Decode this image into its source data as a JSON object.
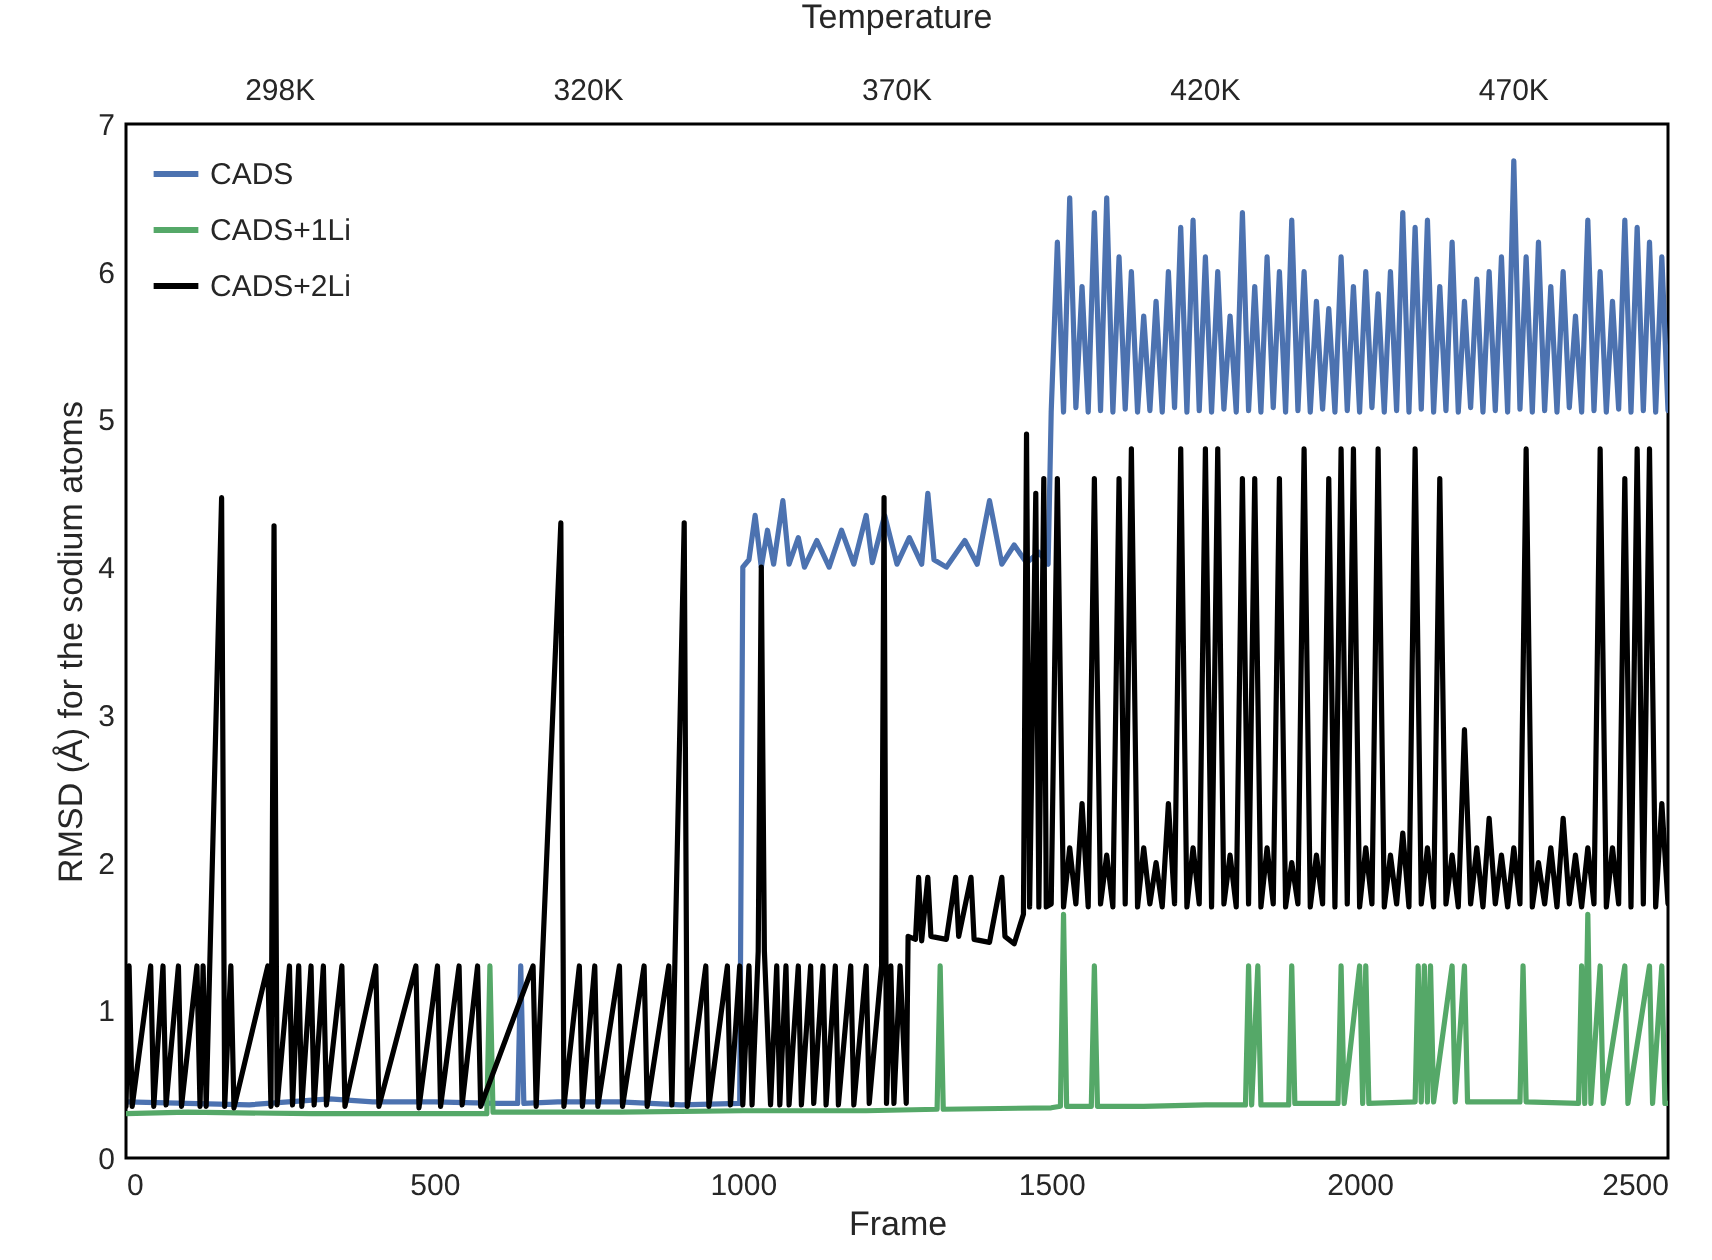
{
  "chart_data": {
    "type": "line",
    "xlabel": "Frame",
    "ylabel": "RMSD (Å) for the sodium atoms",
    "x2label": "Temperature",
    "annotations": [
      "298K",
      "320K",
      "370K",
      "420K",
      "470K"
    ],
    "xlim": [
      0,
      2500
    ],
    "xticks": [
      0,
      500,
      1000,
      1500,
      2000,
      2500
    ],
    "ylim": [
      0,
      7
    ],
    "yticks": [
      0,
      1,
      2,
      3,
      4,
      5,
      6,
      7
    ],
    "grid": false,
    "legend": "top left",
    "marker": "none",
    "line_style": "solid",
    "series": [
      {
        "name": "CADS",
        "color": "#4c72b0",
        "x": [
          0,
          200,
          330,
          400,
          500,
          600,
          635,
          640,
          645,
          700,
          800,
          900,
          995,
          1000,
          1010,
          1020,
          1030,
          1040,
          1050,
          1065,
          1075,
          1090,
          1100,
          1120,
          1140,
          1160,
          1180,
          1200,
          1210,
          1230,
          1250,
          1270,
          1290,
          1300,
          1310,
          1330,
          1360,
          1380,
          1400,
          1420,
          1440,
          1460,
          1480,
          1495,
          1500,
          1510,
          1520,
          1530,
          1540,
          1550,
          1560,
          1570,
          1580,
          1590,
          1600,
          1610,
          1620,
          1630,
          1640,
          1650,
          1660,
          1670,
          1680,
          1690,
          1700,
          1710,
          1720,
          1730,
          1740,
          1750,
          1760,
          1770,
          1780,
          1790,
          1800,
          1810,
          1820,
          1830,
          1840,
          1850,
          1860,
          1870,
          1880,
          1890,
          1900,
          1910,
          1920,
          1930,
          1940,
          1950,
          1960,
          1970,
          1980,
          1990,
          2000,
          2010,
          2020,
          2030,
          2040,
          2050,
          2060,
          2070,
          2080,
          2090,
          2100,
          2110,
          2120,
          2130,
          2140,
          2150,
          2160,
          2170,
          2180,
          2190,
          2200,
          2210,
          2220,
          2230,
          2240,
          2250,
          2260,
          2270,
          2280,
          2290,
          2300,
          2310,
          2320,
          2330,
          2340,
          2350,
          2360,
          2370,
          2380,
          2390,
          2400,
          2410,
          2420,
          2430,
          2440,
          2450,
          2460,
          2470,
          2480,
          2490,
          2500
        ],
        "values": [
          0.38,
          0.36,
          0.4,
          0.38,
          0.38,
          0.37,
          0.37,
          1.3,
          0.37,
          0.38,
          0.38,
          0.36,
          0.37,
          4.0,
          4.05,
          4.35,
          4.0,
          4.25,
          4.02,
          4.45,
          4.02,
          4.2,
          4.0,
          4.18,
          4.0,
          4.25,
          4.02,
          4.35,
          4.03,
          4.35,
          4.02,
          4.2,
          4.02,
          4.5,
          4.05,
          4.0,
          4.18,
          4.02,
          4.45,
          4.02,
          4.15,
          4.03,
          4.1,
          4.02,
          5.05,
          6.2,
          5.05,
          6.5,
          5.08,
          5.9,
          5.05,
          6.4,
          5.06,
          6.5,
          5.05,
          6.1,
          5.07,
          6.0,
          5.05,
          5.7,
          5.06,
          5.8,
          5.05,
          6.0,
          5.08,
          6.3,
          5.05,
          6.35,
          5.06,
          6.1,
          5.05,
          6.0,
          5.07,
          5.7,
          5.05,
          6.4,
          5.06,
          5.9,
          5.05,
          6.1,
          5.08,
          6.0,
          5.05,
          6.35,
          5.06,
          6.0,
          5.05,
          5.8,
          5.07,
          5.75,
          5.05,
          6.1,
          5.06,
          5.9,
          5.05,
          6.0,
          5.08,
          5.85,
          5.05,
          6.0,
          5.06,
          6.4,
          5.05,
          6.3,
          5.07,
          6.35,
          5.05,
          5.9,
          5.06,
          6.2,
          5.05,
          5.8,
          5.08,
          5.95,
          5.05,
          6.0,
          5.06,
          6.1,
          5.05,
          6.75,
          5.07,
          6.1,
          5.05,
          6.2,
          5.06,
          5.9,
          5.05,
          6.0,
          5.08,
          5.7,
          5.05,
          6.35,
          5.06,
          6.0,
          5.05,
          5.8,
          5.07,
          6.35,
          5.05,
          6.3,
          5.06,
          6.2,
          5.05,
          6.1,
          5.06
        ]
      },
      {
        "name": "CADS+1Li",
        "color": "#55a868",
        "x": [
          0,
          100,
          300,
          585,
          590,
          595,
          800,
          1000,
          1200,
          1315,
          1320,
          1325,
          1500,
          1515,
          1520,
          1525,
          1565,
          1570,
          1575,
          1650,
          1750,
          1815,
          1820,
          1825,
          1835,
          1840,
          1885,
          1890,
          1895,
          1965,
          1970,
          1975,
          2000,
          2005,
          2010,
          2015,
          2090,
          2095,
          2100,
          2105,
          2110,
          2115,
          2120,
          2150,
          2155,
          2170,
          2175,
          2260,
          2265,
          2270,
          2355,
          2360,
          2365,
          2370,
          2375,
          2390,
          2395,
          2430,
          2435,
          2470,
          2475,
          2490,
          2495,
          2500
        ],
        "values": [
          0.3,
          0.31,
          0.3,
          0.3,
          1.3,
          0.31,
          0.31,
          0.32,
          0.32,
          0.33,
          1.3,
          0.33,
          0.34,
          0.35,
          1.65,
          0.35,
          0.35,
          1.3,
          0.35,
          0.35,
          0.36,
          0.36,
          1.3,
          0.36,
          1.3,
          0.36,
          0.36,
          1.3,
          0.37,
          0.37,
          1.3,
          0.37,
          1.3,
          0.37,
          1.3,
          0.37,
          0.38,
          1.3,
          0.38,
          1.3,
          0.38,
          1.3,
          0.38,
          1.3,
          0.38,
          1.3,
          0.38,
          0.38,
          1.3,
          0.38,
          0.37,
          1.3,
          0.37,
          1.65,
          0.37,
          1.3,
          0.37,
          1.3,
          0.37,
          1.3,
          0.37,
          1.3,
          0.37,
          0.37
        ]
      },
      {
        "name": "CADS+2Li",
        "color": "#000000",
        "x": [
          0,
          5,
          10,
          40,
          45,
          60,
          65,
          85,
          90,
          115,
          120,
          125,
          130,
          155,
          160,
          170,
          175,
          230,
          235,
          240,
          245,
          265,
          270,
          280,
          285,
          300,
          305,
          320,
          325,
          350,
          355,
          405,
          410,
          470,
          475,
          505,
          510,
          540,
          545,
          570,
          575,
          660,
          665,
          705,
          710,
          735,
          740,
          760,
          765,
          800,
          805,
          840,
          845,
          880,
          885,
          905,
          910,
          940,
          945,
          975,
          980,
          995,
          1000,
          1010,
          1015,
          1025,
          1030,
          1035,
          1045,
          1055,
          1060,
          1070,
          1075,
          1090,
          1095,
          1110,
          1115,
          1130,
          1135,
          1150,
          1155,
          1175,
          1180,
          1200,
          1205,
          1225,
          1229,
          1233,
          1240,
          1245,
          1255,
          1265,
          1268,
          1280,
          1285,
          1290,
          1300,
          1305,
          1330,
          1345,
          1350,
          1370,
          1375,
          1400,
          1420,
          1425,
          1440,
          1455,
          1460,
          1465,
          1475,
          1480,
          1488,
          1492,
          1500,
          1510,
          1520,
          1530,
          1540,
          1550,
          1560,
          1570,
          1580,
          1590,
          1600,
          1610,
          1620,
          1630,
          1640,
          1650,
          1660,
          1670,
          1680,
          1690,
          1700,
          1710,
          1720,
          1730,
          1740,
          1750,
          1760,
          1770,
          1780,
          1790,
          1800,
          1810,
          1820,
          1830,
          1840,
          1850,
          1860,
          1870,
          1880,
          1890,
          1900,
          1910,
          1920,
          1930,
          1940,
          1950,
          1960,
          1970,
          1980,
          1990,
          2000,
          2010,
          2020,
          2030,
          2040,
          2050,
          2060,
          2070,
          2080,
          2090,
          2100,
          2110,
          2120,
          2130,
          2140,
          2150,
          2160,
          2170,
          2180,
          2190,
          2200,
          2210,
          2220,
          2230,
          2240,
          2250,
          2260,
          2270,
          2280,
          2290,
          2300,
          2310,
          2320,
          2330,
          2340,
          2350,
          2360,
          2370,
          2380,
          2390,
          2400,
          2410,
          2420,
          2430,
          2440,
          2450,
          2460,
          2470,
          2480,
          2490,
          2500
        ],
        "values": [
          0.35,
          1.3,
          0.35,
          1.3,
          0.35,
          1.3,
          0.36,
          1.3,
          0.35,
          1.3,
          0.35,
          1.3,
          0.35,
          4.47,
          0.35,
          1.3,
          0.34,
          1.3,
          0.35,
          4.28,
          0.36,
          1.3,
          0.36,
          1.3,
          0.35,
          1.3,
          0.36,
          1.3,
          0.36,
          1.3,
          0.35,
          1.3,
          0.35,
          1.3,
          0.34,
          1.3,
          0.35,
          1.3,
          0.36,
          1.3,
          0.35,
          1.3,
          0.35,
          4.3,
          0.35,
          1.3,
          0.35,
          1.3,
          0.35,
          1.3,
          0.35,
          1.3,
          0.35,
          1.3,
          0.36,
          4.3,
          0.35,
          1.3,
          0.35,
          1.3,
          0.36,
          1.3,
          0.36,
          1.3,
          0.36,
          1.4,
          4.0,
          1.4,
          0.36,
          1.3,
          0.36,
          1.3,
          0.36,
          1.3,
          0.36,
          1.3,
          0.37,
          1.3,
          0.36,
          1.3,
          0.36,
          1.3,
          0.36,
          1.3,
          0.37,
          1.3,
          4.47,
          0.37,
          1.3,
          0.37,
          1.3,
          0.37,
          1.5,
          1.48,
          1.9,
          1.47,
          1.9,
          1.5,
          1.48,
          1.9,
          1.5,
          1.9,
          1.48,
          1.46,
          1.9,
          1.5,
          1.45,
          1.65,
          4.9,
          1.7,
          4.5,
          1.7,
          4.6,
          1.7,
          1.72,
          4.6,
          1.7,
          2.1,
          1.72,
          2.4,
          1.7,
          4.6,
          1.72,
          2.05,
          1.7,
          4.6,
          1.72,
          4.8,
          1.7,
          2.1,
          1.72,
          2.0,
          1.7,
          2.4,
          1.72,
          4.8,
          1.7,
          2.1,
          1.72,
          4.8,
          1.7,
          4.8,
          1.72,
          2.05,
          1.7,
          4.6,
          1.72,
          4.6,
          1.7,
          2.1,
          1.72,
          4.6,
          1.7,
          2.0,
          1.72,
          4.8,
          1.7,
          2.05,
          1.72,
          4.6,
          1.7,
          4.8,
          1.72,
          4.8,
          1.7,
          2.1,
          1.72,
          4.8,
          1.7,
          2.05,
          1.72,
          2.2,
          1.7,
          4.8,
          1.72,
          2.1,
          1.7,
          4.6,
          1.72,
          2.05,
          1.7,
          2.9,
          1.72,
          2.1,
          1.7,
          2.3,
          1.72,
          2.05,
          1.7,
          2.1,
          1.72,
          4.8,
          1.7,
          2.0,
          1.72,
          2.1,
          1.7,
          2.3,
          1.72,
          2.05,
          1.7,
          2.1,
          1.72,
          4.8,
          1.7,
          2.1,
          1.72,
          4.6,
          1.7,
          4.8,
          1.72,
          4.8,
          1.7,
          2.4,
          1.72
        ]
      }
    ]
  }
}
